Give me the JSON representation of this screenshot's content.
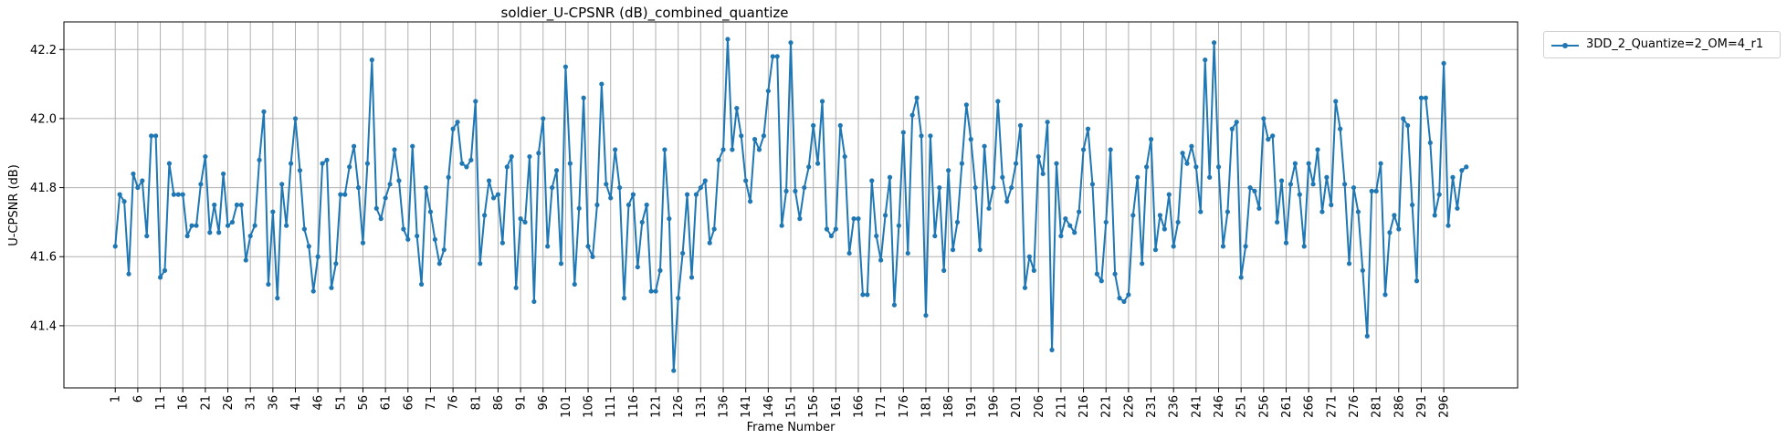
{
  "chart_data": {
    "type": "line",
    "title": "soldier_U-CPSNR (dB)_combined_quantize",
    "xlabel": "Frame Number",
    "ylabel": "U-CPSNR (dB)",
    "ylim": [
      41.22,
      42.28
    ],
    "xlim": [
      -10.4,
      312.4
    ],
    "yticks": [
      41.4,
      41.6,
      41.8,
      42.0,
      42.2
    ],
    "xticks": [
      1,
      6,
      11,
      16,
      21,
      26,
      31,
      36,
      41,
      46,
      51,
      56,
      61,
      66,
      71,
      76,
      81,
      86,
      91,
      96,
      101,
      106,
      111,
      116,
      121,
      126,
      131,
      136,
      141,
      146,
      151,
      156,
      161,
      166,
      171,
      176,
      181,
      186,
      191,
      196,
      201,
      206,
      211,
      216,
      221,
      226,
      231,
      236,
      241,
      246,
      251,
      256,
      261,
      266,
      271,
      276,
      281,
      286,
      291,
      296
    ],
    "grid": true,
    "legend_position": "outside-top-right",
    "colors": {
      "series": "#1f77b4"
    },
    "series": [
      {
        "name": "3DD_2_Quantize=2_OM=4_r1",
        "x_start": 1,
        "values": [
          41.63,
          41.78,
          41.76,
          41.55,
          41.84,
          41.8,
          41.82,
          41.66,
          41.95,
          41.95,
          41.54,
          41.56,
          41.87,
          41.78,
          41.78,
          41.78,
          41.66,
          41.69,
          41.69,
          41.81,
          41.89,
          41.67,
          41.75,
          41.67,
          41.84,
          41.69,
          41.7,
          41.75,
          41.75,
          41.59,
          41.66,
          41.69,
          41.88,
          42.02,
          41.52,
          41.73,
          41.48,
          41.81,
          41.69,
          41.87,
          42.0,
          41.85,
          41.68,
          41.63,
          41.5,
          41.6,
          41.87,
          41.88,
          41.51,
          41.58,
          41.78,
          41.78,
          41.86,
          41.92,
          41.8,
          41.64,
          41.87,
          42.17,
          41.74,
          41.71,
          41.77,
          41.81,
          41.91,
          41.82,
          41.68,
          41.65,
          41.92,
          41.66,
          41.52,
          41.8,
          41.73,
          41.65,
          41.58,
          41.62,
          41.83,
          41.97,
          41.99,
          41.87,
          41.86,
          41.88,
          42.05,
          41.58,
          41.72,
          41.82,
          41.77,
          41.78,
          41.64,
          41.86,
          41.89,
          41.51,
          41.71,
          41.7,
          41.89,
          41.47,
          41.9,
          42.0,
          41.63,
          41.8,
          41.85,
          41.58,
          42.15,
          41.87,
          41.52,
          41.74,
          42.06,
          41.63,
          41.6,
          41.75,
          42.1,
          41.81,
          41.77,
          41.91,
          41.8,
          41.48,
          41.75,
          41.78,
          41.57,
          41.7,
          41.75,
          41.5,
          41.5,
          41.56,
          41.91,
          41.71,
          41.27,
          41.48,
          41.61,
          41.78,
          41.54,
          41.78,
          41.8,
          41.82,
          41.64,
          41.68,
          41.88,
          41.91,
          42.23,
          41.91,
          42.03,
          41.95,
          41.82,
          41.76,
          41.94,
          41.91,
          41.95,
          42.08,
          42.18,
          42.18,
          41.69,
          41.79,
          42.22,
          41.79,
          41.71,
          41.8,
          41.86,
          41.98,
          41.87,
          42.05,
          41.68,
          41.66,
          41.68,
          41.98,
          41.89,
          41.61,
          41.71,
          41.71,
          41.49,
          41.49,
          41.82,
          41.66,
          41.59,
          41.72,
          41.83,
          41.46,
          41.69,
          41.96,
          41.61,
          42.01,
          42.06,
          41.95,
          41.43,
          41.95,
          41.66,
          41.8,
          41.56,
          41.85,
          41.62,
          41.7,
          41.87,
          42.04,
          41.94,
          41.8,
          41.62,
          41.92,
          41.74,
          41.8,
          42.05,
          41.83,
          41.76,
          41.8,
          41.87,
          41.98,
          41.51,
          41.6,
          41.56,
          41.89,
          41.84,
          41.99,
          41.33,
          41.87,
          41.66,
          41.71,
          41.69,
          41.67,
          41.73,
          41.91,
          41.97,
          41.81,
          41.55,
          41.53,
          41.7,
          41.91,
          41.55,
          41.48,
          41.47,
          41.49,
          41.72,
          41.83,
          41.58,
          41.86,
          41.94,
          41.62,
          41.72,
          41.68,
          41.78,
          41.63,
          41.7,
          41.9,
          41.87,
          41.92,
          41.86,
          41.73,
          42.17,
          41.83,
          42.22,
          41.86,
          41.63,
          41.73,
          41.97,
          41.99,
          41.54,
          41.63,
          41.8,
          41.79,
          41.74,
          42.0,
          41.94,
          41.95,
          41.7,
          41.82,
          41.64,
          41.81,
          41.87,
          41.78,
          41.63,
          41.87,
          41.81,
          41.91,
          41.73,
          41.83,
          41.75,
          42.05,
          41.97,
          41.81,
          41.58,
          41.8,
          41.73,
          41.56,
          41.37,
          41.79,
          41.79,
          41.87,
          41.49,
          41.67,
          41.72,
          41.68,
          42.0,
          41.98,
          41.75,
          41.53,
          42.06,
          42.06,
          41.93,
          41.72,
          41.78,
          42.16,
          41.69,
          41.83,
          41.74,
          41.85,
          41.86
        ]
      }
    ]
  }
}
